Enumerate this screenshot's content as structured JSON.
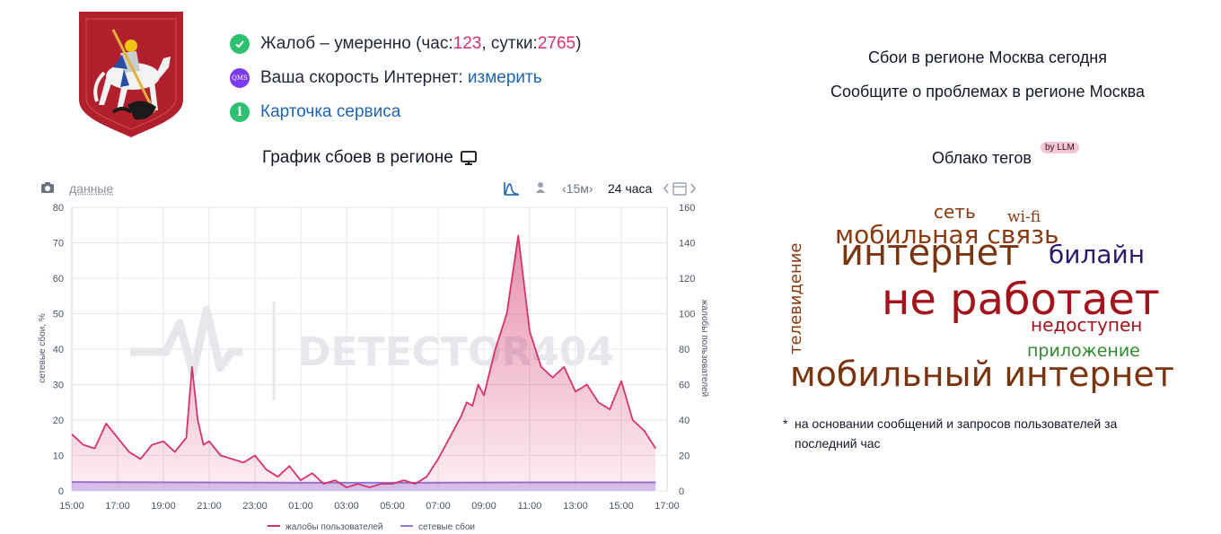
{
  "status": {
    "complaints_prefix": "Жалоб – умеренно (час: ",
    "hour_count": "123",
    "day_sep": ", сутки: ",
    "day_count": "2765",
    "complaints_suffix": ")",
    "qms_badge": "QMS",
    "speed_label": "Ваша скорость Интернет: ",
    "speed_link": "измерить",
    "service_card": "Карточка сервиса"
  },
  "chart_header": {
    "title": "График сбоев в регионе",
    "data_link": "данные",
    "range_15m": "‹15м›",
    "range_24h": "24 часа"
  },
  "right_panel": {
    "outages_today": "Сбои в регионе Москва сегодня",
    "report_problems": "Сообщите о проблемах в регионе Москва",
    "tag_cloud_title": "Облако тегов",
    "llm_badge": "by LLM",
    "note_star": "*",
    "note": "на основании сообщений и запросов пользователей за последний час"
  },
  "tag_cloud": [
    {
      "text": "сеть",
      "color": "#8b3a0f"
    },
    {
      "text": "wi-fi",
      "color": "#8b3a0f"
    },
    {
      "text": "мобильная связь",
      "color": "#8b3a0f"
    },
    {
      "text": "интернет",
      "color": "#7a3410"
    },
    {
      "text": "билайн",
      "color": "#2e1a6b"
    },
    {
      "text": "телевидение",
      "color": "#8b3a0f"
    },
    {
      "text": "не работает",
      "color": "#a3131c"
    },
    {
      "text": "недоступен",
      "color": "#a3131c"
    },
    {
      "text": "приложение",
      "color": "#2e8b2e"
    },
    {
      "text": "мобильный интернет",
      "color": "#7a3410"
    }
  ],
  "colors": {
    "complaints_line": "#d6336c",
    "network_line": "#8e7ad6",
    "link": "#1f64b0",
    "accent_num": "#d6336c"
  },
  "chart_data": {
    "type": "line",
    "x_ticks": [
      "15:00",
      "17:00",
      "19:00",
      "21:00",
      "23:00",
      "01:00",
      "03:00",
      "05:00",
      "07:00",
      "09:00",
      "11:00",
      "13:00",
      "15:00",
      "17:00"
    ],
    "ylabel_left": "сетевые сбои, %",
    "ylabel_right": "жалобы пользователей",
    "ylim_left": [
      0,
      80
    ],
    "ylim_right": [
      0,
      160
    ],
    "left_ticks": [
      "0",
      "10",
      "20",
      "30",
      "40",
      "50",
      "60",
      "70",
      "80"
    ],
    "right_ticks": [
      "0",
      "20",
      "40",
      "60",
      "80",
      "100",
      "120",
      "140",
      "160"
    ],
    "grid": true,
    "legend_position": "bottom",
    "watermark": "DETECTOR404",
    "series": [
      {
        "name": "жалобы пользователей",
        "axis": "right",
        "x_hours": [
          0,
          0.5,
          1,
          1.5,
          2,
          2.5,
          3,
          3.5,
          4,
          4.5,
          5,
          5.25,
          5.5,
          5.75,
          6,
          6.5,
          7,
          7.5,
          8,
          8.5,
          9,
          9.5,
          10,
          10.5,
          11,
          11.5,
          12,
          12.5,
          13,
          13.5,
          14,
          14.5,
          15,
          15.5,
          16,
          16.5,
          17,
          17.25,
          17.5,
          17.75,
          18,
          18.5,
          19,
          19.5,
          20,
          20.5,
          21,
          21.5,
          22,
          22.5,
          23,
          23.5,
          24,
          24.5,
          25,
          25.5
        ],
        "values": [
          32,
          26,
          24,
          38,
          30,
          22,
          18,
          26,
          28,
          22,
          30,
          70,
          40,
          26,
          28,
          20,
          18,
          16,
          20,
          12,
          8,
          14,
          6,
          10,
          4,
          6,
          2,
          4,
          2,
          4,
          4,
          6,
          4,
          8,
          18,
          30,
          42,
          50,
          48,
          60,
          54,
          80,
          100,
          144,
          90,
          70,
          64,
          70,
          56,
          60,
          50,
          46,
          62,
          40,
          34,
          24
        ]
      },
      {
        "name": "сетевые сбои",
        "axis": "left",
        "x_hours": [
          0,
          5,
          10,
          15,
          20,
          25.5
        ],
        "values": [
          2.5,
          2.4,
          2.3,
          2.3,
          2.4,
          2.4
        ]
      }
    ]
  }
}
